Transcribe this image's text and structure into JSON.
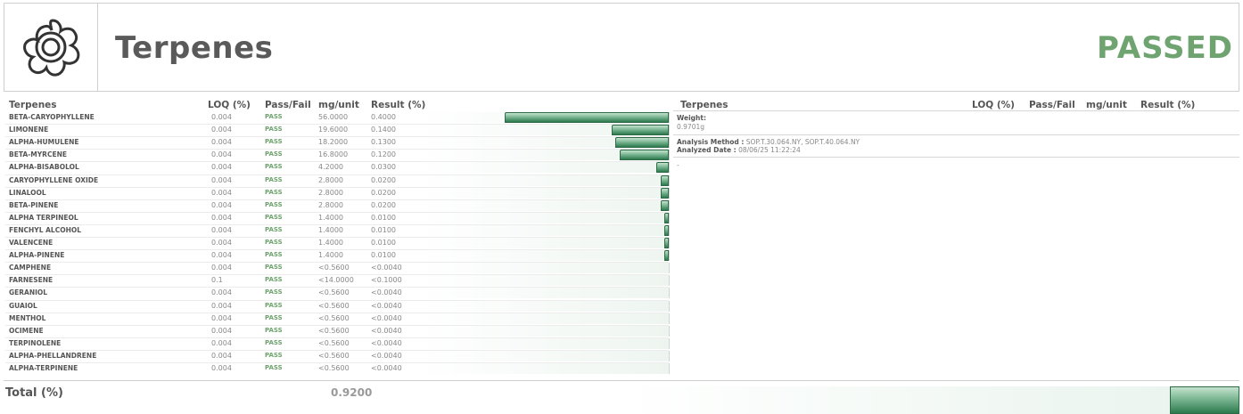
{
  "header": {
    "logo_icon": "flower-icon",
    "title": "Terpenes",
    "status": "PASSED",
    "status_color": "#6fa36f"
  },
  "table": {
    "columns": [
      "Terpenes",
      "LOQ (%)",
      "Pass/Fail",
      "mg/unit",
      "Result (%)"
    ],
    "rows": [
      {
        "name": "BETA-CARYOPHYLLENE",
        "loq": "0.004",
        "pf": "PASS",
        "mg": "56.0000",
        "result": "0.4000",
        "level": 0.4
      },
      {
        "name": "LIMONENE",
        "loq": "0.004",
        "pf": "PASS",
        "mg": "19.6000",
        "result": "0.1400",
        "level": 0.14
      },
      {
        "name": "ALPHA-HUMULENE",
        "loq": "0.004",
        "pf": "PASS",
        "mg": "18.2000",
        "result": "0.1300",
        "level": 0.13
      },
      {
        "name": "BETA-MYRCENE",
        "loq": "0.004",
        "pf": "PASS",
        "mg": "16.8000",
        "result": "0.1200",
        "level": 0.12
      },
      {
        "name": "ALPHA-BISABOLOL",
        "loq": "0.004",
        "pf": "PASS",
        "mg": "4.2000",
        "result": "0.0300",
        "level": 0.03
      },
      {
        "name": "CARYOPHYLLENE OXIDE",
        "loq": "0.004",
        "pf": "PASS",
        "mg": "2.8000",
        "result": "0.0200",
        "level": 0.02
      },
      {
        "name": "LINALOOL",
        "loq": "0.004",
        "pf": "PASS",
        "mg": "2.8000",
        "result": "0.0200",
        "level": 0.02
      },
      {
        "name": "BETA-PINENE",
        "loq": "0.004",
        "pf": "PASS",
        "mg": "2.8000",
        "result": "0.0200",
        "level": 0.02
      },
      {
        "name": "ALPHA TERPINEOL",
        "loq": "0.004",
        "pf": "PASS",
        "mg": "1.4000",
        "result": "0.0100",
        "level": 0.01
      },
      {
        "name": "FENCHYL ALCOHOL",
        "loq": "0.004",
        "pf": "PASS",
        "mg": "1.4000",
        "result": "0.0100",
        "level": 0.01
      },
      {
        "name": "VALENCENE",
        "loq": "0.004",
        "pf": "PASS",
        "mg": "1.4000",
        "result": "0.0100",
        "level": 0.01
      },
      {
        "name": "ALPHA-PINENE",
        "loq": "0.004",
        "pf": "PASS",
        "mg": "1.4000",
        "result": "0.0100",
        "level": 0.01
      },
      {
        "name": "CAMPHENE",
        "loq": "0.004",
        "pf": "PASS",
        "mg": "<0.5600",
        "result": "<0.0040",
        "level": 0
      },
      {
        "name": "FARNESENE",
        "loq": "0.1",
        "pf": "PASS",
        "mg": "<14.0000",
        "result": "<0.1000",
        "level": 0
      },
      {
        "name": "GERANIOL",
        "loq": "0.004",
        "pf": "PASS",
        "mg": "<0.5600",
        "result": "<0.0040",
        "level": 0
      },
      {
        "name": "GUAIOL",
        "loq": "0.004",
        "pf": "PASS",
        "mg": "<0.5600",
        "result": "<0.0040",
        "level": 0
      },
      {
        "name": "MENTHOL",
        "loq": "0.004",
        "pf": "PASS",
        "mg": "<0.5600",
        "result": "<0.0040",
        "level": 0
      },
      {
        "name": "OCIMENE",
        "loq": "0.004",
        "pf": "PASS",
        "mg": "<0.5600",
        "result": "<0.0040",
        "level": 0
      },
      {
        "name": "TERPINOLENE",
        "loq": "0.004",
        "pf": "PASS",
        "mg": "<0.5600",
        "result": "<0.0040",
        "level": 0
      },
      {
        "name": "ALPHA-PHELLANDRENE",
        "loq": "0.004",
        "pf": "PASS",
        "mg": "<0.5600",
        "result": "<0.0040",
        "level": 0
      },
      {
        "name": "ALPHA-TERPINENE",
        "loq": "0.004",
        "pf": "PASS",
        "mg": "<0.5600",
        "result": "<0.0040",
        "level": 0
      }
    ]
  },
  "right_panel": {
    "columns": [
      "Terpenes",
      "LOQ (%)",
      "Pass/Fail",
      "mg/unit",
      "Result (%)"
    ],
    "weight_label": "Weight:",
    "weight_value": "0.9701g",
    "method_label": "Analysis Method :",
    "method_value": "SOP.T.30.064.NY, SOP.T.40.064.NY",
    "date_label": "Analyzed Date :",
    "date_value": "08/06/25 11:22:24",
    "note": "-"
  },
  "total": {
    "label": "Total (%)",
    "value": "0.9200",
    "level": 0.92
  }
}
